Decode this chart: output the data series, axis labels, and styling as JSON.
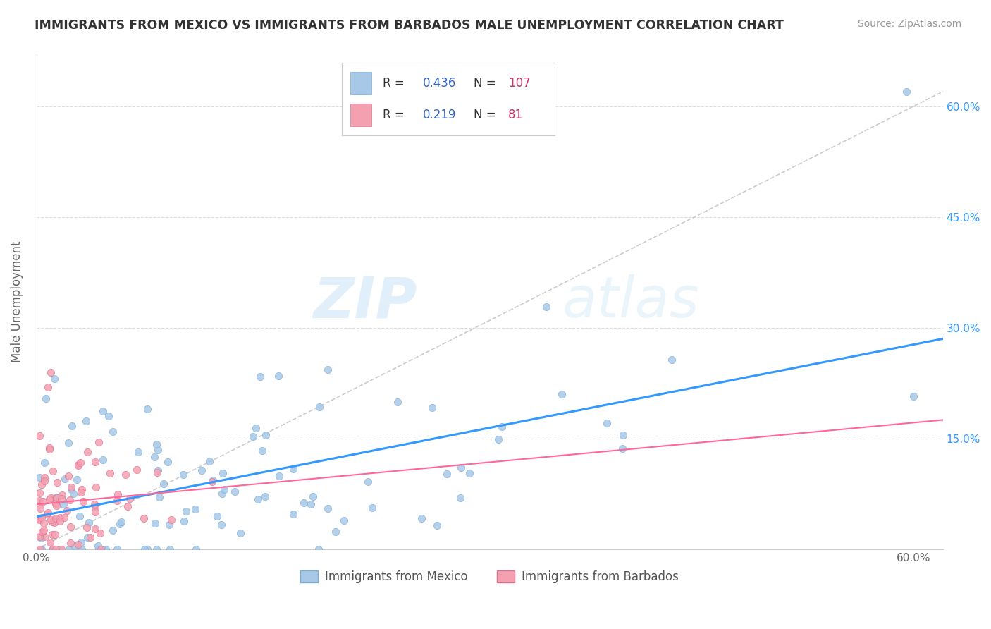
{
  "title": "IMMIGRANTS FROM MEXICO VS IMMIGRANTS FROM BARBADOS MALE UNEMPLOYMENT CORRELATION CHART",
  "source": "Source: ZipAtlas.com",
  "ylabel": "Male Unemployment",
  "xlim": [
    0.0,
    0.62
  ],
  "ylim": [
    0.0,
    0.67
  ],
  "ytick_positions": [
    0.0,
    0.15,
    0.3,
    0.45,
    0.6
  ],
  "mexico_color": "#a8c8e8",
  "mexico_edge": "#7aafd4",
  "barbados_color": "#f4a0b0",
  "barbados_edge": "#e07090",
  "mexico_R": 0.436,
  "mexico_N": 107,
  "barbados_R": 0.219,
  "barbados_N": 81,
  "legend_R_color": "#3366cc",
  "legend_N_color": "#cc3366",
  "watermark_zip": "ZIP",
  "watermark_atlas": "atlas",
  "ref_line_color": "#cccccc",
  "trend_line_color": "#3399ff",
  "barbados_trend_color": "#ff6699",
  "bg_color": "#ffffff"
}
